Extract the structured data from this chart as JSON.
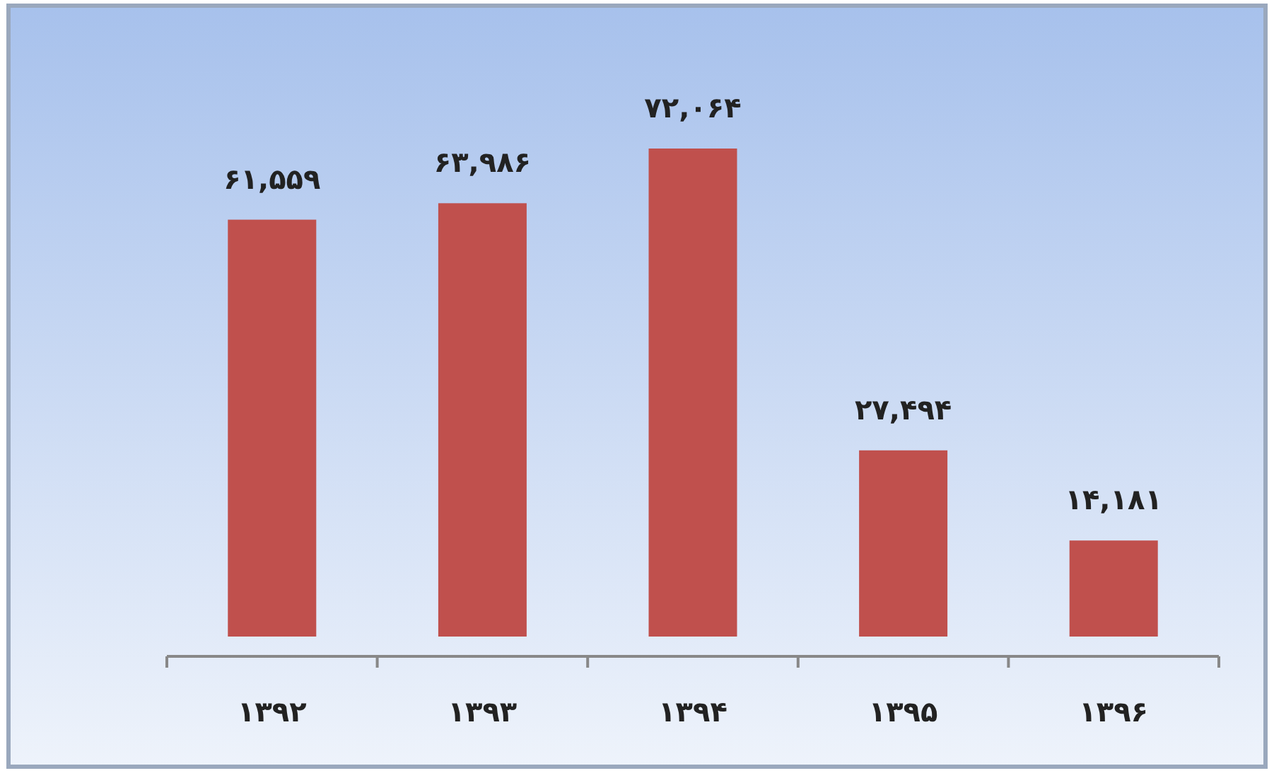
{
  "chart_data": {
    "type": "bar",
    "categories": [
      "۱۳۹۲",
      "۱۳۹۳",
      "۱۳۹۴",
      "۱۳۹۵",
      "۱۳۹۶"
    ],
    "values": [
      61559,
      63986,
      72064,
      27494,
      14181
    ],
    "color": "#c0504d",
    "value_labels": [
      "۶۱,۵۵۹",
      "۶۳,۹۸۶",
      "۷۲,۰۶۴",
      "۲۷,۴۹۴",
      "۱۴,۱۸۱"
    ],
    "tick_labels": "x"
  }
}
